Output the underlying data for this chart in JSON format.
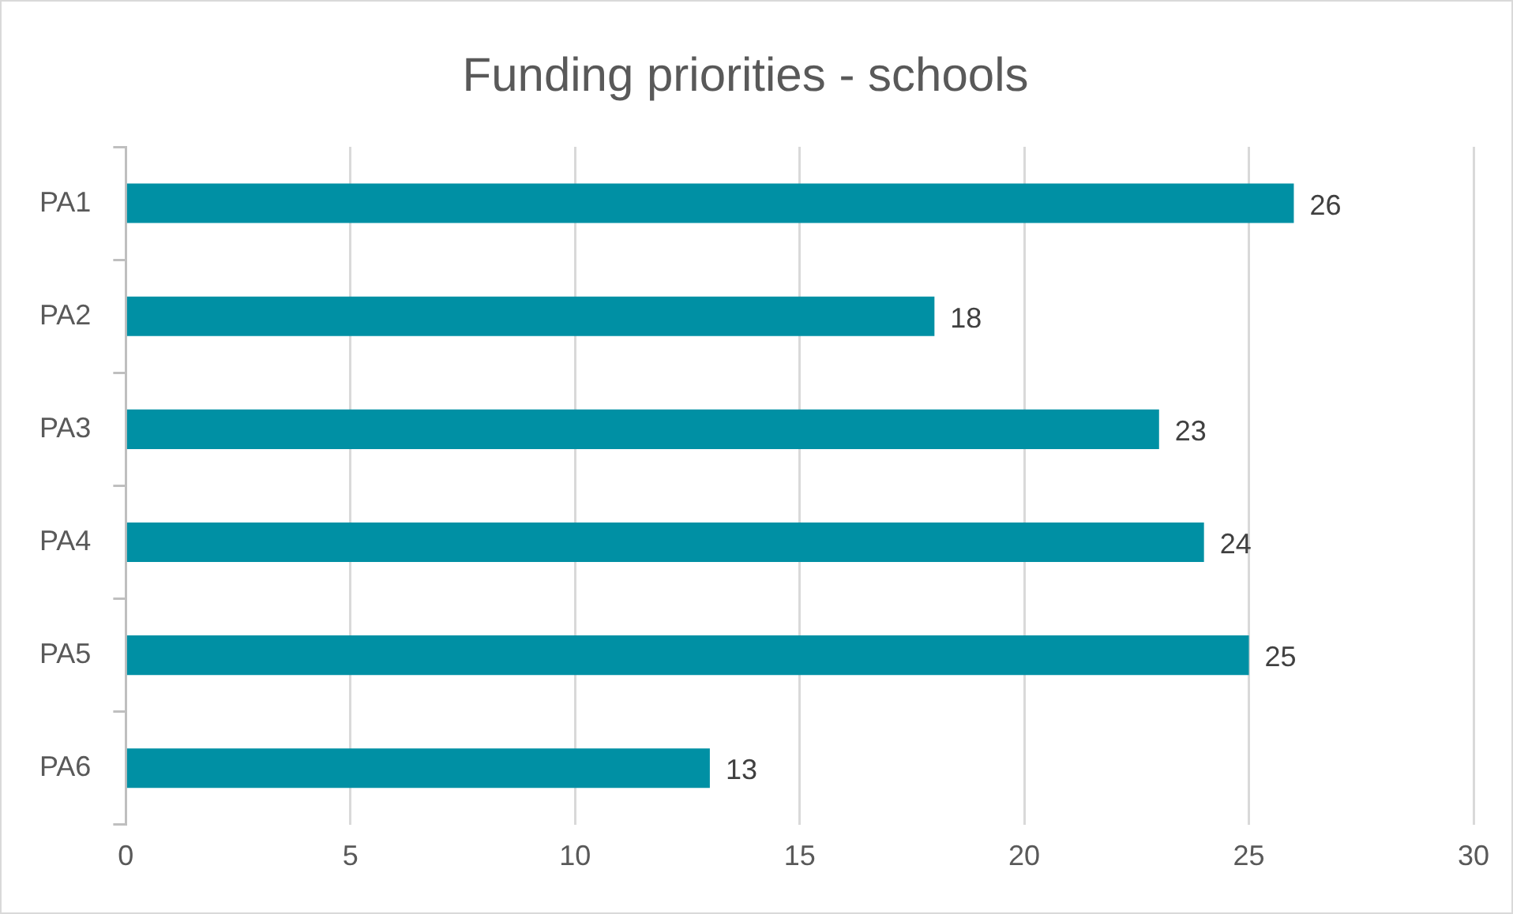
{
  "chart_data": {
    "type": "bar",
    "orientation": "horizontal",
    "title": "Funding priorities - schools",
    "categories": [
      "PA1",
      "PA2",
      "PA3",
      "PA4",
      "PA5",
      "PA6"
    ],
    "values": [
      26,
      18,
      23,
      24,
      25,
      13
    ],
    "color": "#0090a4",
    "xlim": [
      0,
      30
    ],
    "xticks": [
      0,
      5,
      10,
      15,
      20,
      25,
      30
    ],
    "grid": "x",
    "data_labels": true,
    "legend": false
  }
}
